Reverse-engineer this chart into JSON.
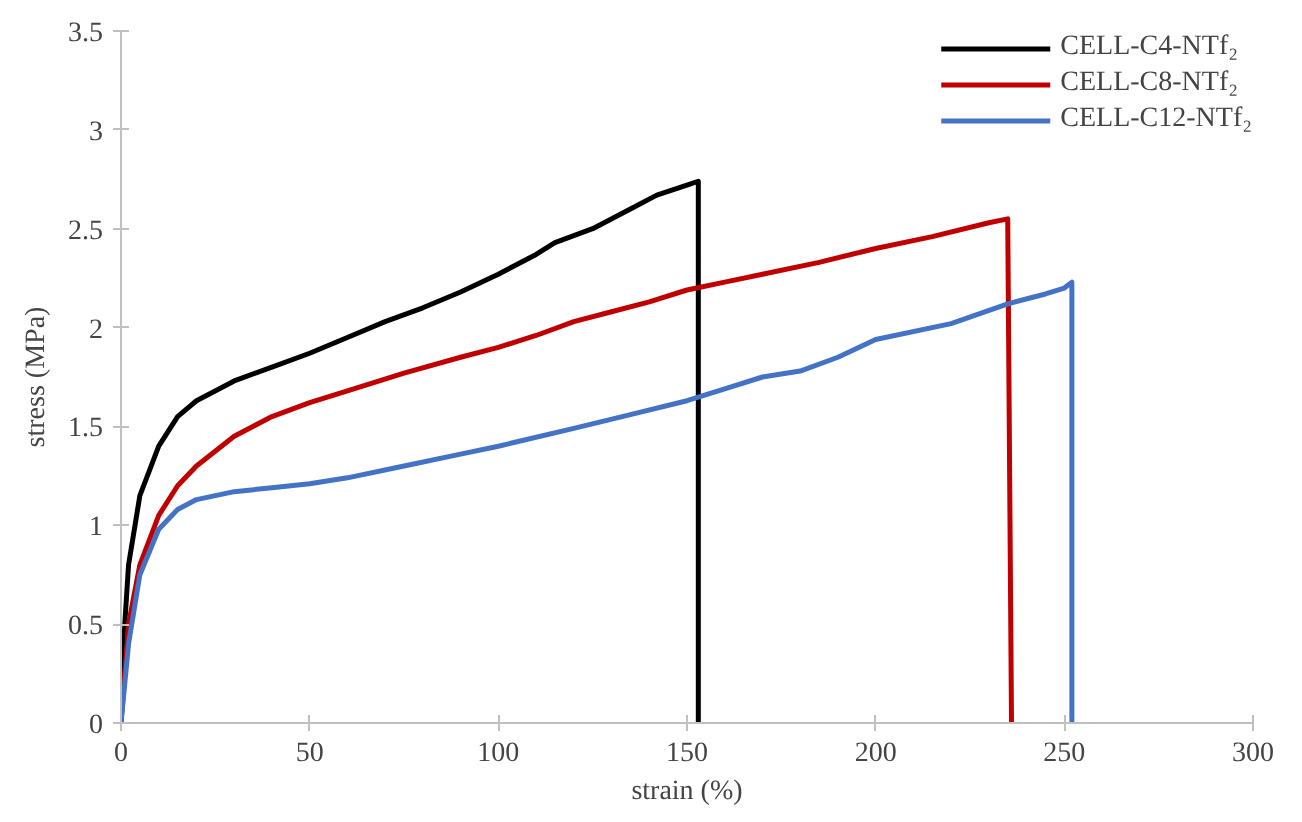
{
  "chart_data": {
    "type": "line",
    "xlabel": "strain (%)",
    "ylabel": "stress (MPa)",
    "xlim": [
      0,
      300
    ],
    "ylim": [
      0,
      3.5
    ],
    "xticks": [
      0,
      50,
      100,
      150,
      200,
      250,
      300
    ],
    "yticks": [
      0,
      {
        "value": 0.5,
        "label": "0.5"
      },
      1,
      {
        "value": 1.5,
        "label": "1.5"
      },
      2,
      {
        "value": 2.5,
        "label": "2.5"
      },
      3,
      {
        "value": 3.5,
        "label": "3.5"
      }
    ],
    "grid": false,
    "legend": "top right",
    "marker": "none",
    "line_style": "solid",
    "series": [
      {
        "name": "CELL-C4-NTf₂",
        "color": "#000000",
        "x": [
          0,
          1,
          2,
          5,
          10,
          15,
          20,
          30,
          40,
          50,
          60,
          70,
          80,
          90,
          100,
          110,
          115,
          125,
          135,
          142,
          150,
          153,
          153
        ],
        "values": [
          0,
          0.5,
          0.8,
          1.15,
          1.4,
          1.55,
          1.63,
          1.73,
          1.8,
          1.87,
          1.95,
          2.03,
          2.1,
          2.18,
          2.27,
          2.37,
          2.43,
          2.5,
          2.6,
          2.67,
          2.72,
          2.74,
          0
        ]
      },
      {
        "name": "CELL-C8-NTf₂",
        "color": "#c00000",
        "x": [
          0,
          2,
          5,
          10,
          15,
          20,
          30,
          40,
          50,
          60,
          75,
          90,
          100,
          110,
          120,
          130,
          140,
          150,
          160,
          170,
          185,
          200,
          215,
          230,
          235,
          236
        ],
        "values": [
          0,
          0.5,
          0.8,
          1.05,
          1.2,
          1.3,
          1.45,
          1.55,
          1.62,
          1.68,
          1.77,
          1.85,
          1.9,
          1.96,
          2.03,
          2.08,
          2.13,
          2.19,
          2.23,
          2.27,
          2.33,
          2.4,
          2.46,
          2.53,
          2.55,
          0
        ]
      },
      {
        "name": "CELL-C12-NTf₂",
        "color": "#4472c4",
        "x": [
          0,
          2,
          5,
          10,
          15,
          20,
          30,
          40,
          50,
          60,
          75,
          90,
          100,
          120,
          135,
          150,
          160,
          170,
          180,
          190,
          200,
          220,
          235,
          245,
          250,
          252,
          252
        ],
        "values": [
          0,
          0.4,
          0.75,
          0.98,
          1.08,
          1.13,
          1.17,
          1.19,
          1.21,
          1.24,
          1.3,
          1.36,
          1.4,
          1.49,
          1.56,
          1.63,
          1.69,
          1.75,
          1.78,
          1.85,
          1.94,
          2.02,
          2.12,
          2.17,
          2.2,
          2.23,
          0
        ]
      }
    ]
  }
}
